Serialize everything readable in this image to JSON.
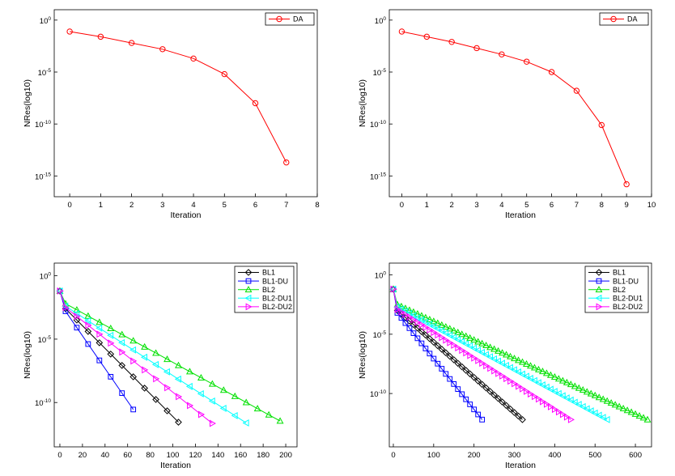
{
  "chart_data": [
    {
      "type": "line",
      "title": "",
      "xlabel": "Iteration",
      "ylabel": "NRes(log10)",
      "xlim": [
        -0.5,
        8
      ],
      "xticks": [
        0,
        1,
        2,
        3,
        4,
        5,
        6,
        7,
        8
      ],
      "ylim_exp": [
        -17,
        1
      ],
      "yticks_exp": [
        0,
        -5,
        -10,
        -15
      ],
      "ytick_labels": [
        {
          "base": "10",
          "exp": "0"
        },
        {
          "base": "10",
          "exp": "-5"
        },
        {
          "base": "10",
          "exp": "-10"
        },
        {
          "base": "10",
          "exp": "-15"
        }
      ],
      "legend_position": "top-right",
      "series": [
        {
          "name": "DA",
          "color": "#ff0000",
          "marker": "circle",
          "x": [
            0,
            1,
            2,
            3,
            4,
            5,
            6,
            7
          ],
          "y_exp": [
            -1.1,
            -1.6,
            -2.2,
            -2.8,
            -3.7,
            -5.2,
            -8.0,
            -13.7
          ]
        }
      ]
    },
    {
      "type": "line",
      "title": "",
      "xlabel": "Iteration",
      "ylabel": "NRes(log10)",
      "xlim": [
        -0.5,
        10
      ],
      "xticks": [
        0,
        1,
        2,
        3,
        4,
        5,
        6,
        7,
        8,
        9,
        10
      ],
      "ylim_exp": [
        -17,
        1
      ],
      "yticks_exp": [
        0,
        -5,
        -10,
        -15
      ],
      "ytick_labels": [
        {
          "base": "10",
          "exp": "0"
        },
        {
          "base": "10",
          "exp": "-5"
        },
        {
          "base": "10",
          "exp": "-10"
        },
        {
          "base": "10",
          "exp": "-15"
        }
      ],
      "legend_position": "top-right",
      "series": [
        {
          "name": "DA",
          "color": "#ff0000",
          "marker": "circle",
          "x": [
            0,
            1,
            2,
            3,
            4,
            5,
            6,
            7,
            8,
            9
          ],
          "y_exp": [
            -1.1,
            -1.6,
            -2.1,
            -2.7,
            -3.3,
            -4.0,
            -5.0,
            -6.8,
            -10.1,
            -15.8
          ]
        }
      ]
    },
    {
      "type": "line",
      "title": "",
      "xlabel": "Iteration",
      "ylabel": "NRes(log10)",
      "xlim": [
        -5,
        210
      ],
      "xticks": [
        0,
        20,
        40,
        60,
        80,
        100,
        120,
        140,
        160,
        180,
        200
      ],
      "ylim_exp": [
        -13.5,
        1
      ],
      "yticks_exp": [
        0,
        -5,
        -10
      ],
      "ytick_labels": [
        {
          "base": "10",
          "exp": "0"
        },
        {
          "base": "10",
          "exp": "-5"
        },
        {
          "base": "10",
          "exp": "-10"
        }
      ],
      "legend_position": "top-right",
      "series": [
        {
          "name": "BL1",
          "color": "#000000",
          "marker": "diamond",
          "y0_exp": -1.2,
          "knee_x": 5,
          "knee_exp": -2.6,
          "end_x": 110,
          "end_exp": -12.0,
          "step": 10
        },
        {
          "name": "BL1-DU",
          "color": "#0000ff",
          "marker": "square",
          "y0_exp": -1.2,
          "knee_x": 5,
          "knee_exp": -2.8,
          "end_x": 70,
          "end_exp": -11.2,
          "step": 10
        },
        {
          "name": "BL2",
          "color": "#00e000",
          "marker": "triangle-up",
          "y0_exp": -1.2,
          "knee_x": 5,
          "knee_exp": -2.2,
          "end_x": 200,
          "end_exp": -11.7,
          "step": 10
        },
        {
          "name": "BL2-DU1",
          "color": "#00ffff",
          "marker": "triangle-left",
          "y0_exp": -1.2,
          "knee_x": 5,
          "knee_exp": -2.4,
          "end_x": 170,
          "end_exp": -11.9,
          "step": 10
        },
        {
          "name": "BL2-DU2",
          "color": "#ff00ff",
          "marker": "triangle-right",
          "y0_exp": -1.2,
          "knee_x": 5,
          "knee_exp": -2.5,
          "end_x": 140,
          "end_exp": -12.0,
          "step": 10
        }
      ]
    },
    {
      "type": "line",
      "title": "",
      "xlabel": "Iteration",
      "ylabel": "NRes(log10)",
      "xlim": [
        -10,
        640
      ],
      "xticks": [
        0,
        100,
        200,
        300,
        400,
        500,
        600
      ],
      "ylim_exp": [
        -14.5,
        1
      ],
      "yticks_exp": [
        0,
        -5,
        -10
      ],
      "ytick_labels": [
        {
          "base": "10",
          "exp": "0"
        },
        {
          "base": "10",
          "exp": "-5"
        },
        {
          "base": "10",
          "exp": "-10"
        }
      ],
      "legend_position": "top-right",
      "series": [
        {
          "name": "BL1",
          "color": "#000000",
          "marker": "diamond",
          "y0_exp": -1.2,
          "knee_x": 10,
          "knee_exp": -3.0,
          "end_x": 320,
          "end_exp": -12.2,
          "step": 10
        },
        {
          "name": "BL1-DU",
          "color": "#0000ff",
          "marker": "square",
          "y0_exp": -1.2,
          "knee_x": 10,
          "knee_exp": -3.2,
          "end_x": 220,
          "end_exp": -12.2,
          "step": 10
        },
        {
          "name": "BL2",
          "color": "#00e000",
          "marker": "triangle-up",
          "y0_exp": -1.2,
          "knee_x": 10,
          "knee_exp": -2.5,
          "end_x": 630,
          "end_exp": -12.2,
          "step": 10
        },
        {
          "name": "BL2-DU1",
          "color": "#00ffff",
          "marker": "triangle-left",
          "y0_exp": -1.2,
          "knee_x": 10,
          "knee_exp": -2.7,
          "end_x": 530,
          "end_exp": -12.2,
          "step": 10
        },
        {
          "name": "BL2-DU2",
          "color": "#ff00ff",
          "marker": "triangle-right",
          "y0_exp": -1.2,
          "knee_x": 10,
          "knee_exp": -2.9,
          "end_x": 440,
          "end_exp": -12.2,
          "step": 10
        }
      ]
    }
  ]
}
